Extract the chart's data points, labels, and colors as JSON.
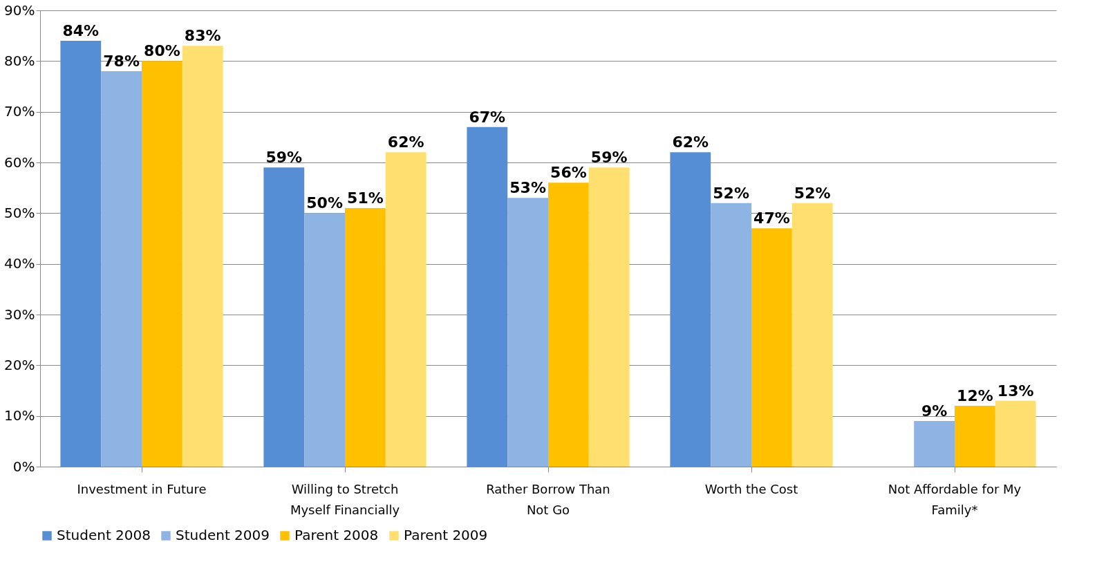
{
  "chart_data": {
    "type": "bar",
    "categories": [
      "Investment in Future",
      "Willing to Stretch Myself Financially",
      "Rather Borrow Than Not Go",
      "Worth the Cost",
      "Not Affordable for My Family*"
    ],
    "series": [
      {
        "name": "Student 2008",
        "color": "#558ed5",
        "values": [
          84,
          59,
          67,
          62,
          null
        ],
        "value_labels": [
          "84%",
          "59%",
          "67%",
          "62%",
          null
        ]
      },
      {
        "name": "Student 2009",
        "color": "#8eb4e3",
        "values": [
          78,
          50,
          53,
          52,
          9
        ],
        "value_labels": [
          "78%",
          "50%",
          "53%",
          "52%",
          "9%"
        ]
      },
      {
        "name": "Parent 2008",
        "color": "#ffc000",
        "values": [
          80,
          51,
          56,
          47,
          12
        ],
        "value_labels": [
          "80%",
          "51%",
          "56%",
          "47%",
          "12%"
        ]
      },
      {
        "name": "Parent 2009",
        "color": "#ffdf6f",
        "values": [
          83,
          62,
          59,
          52,
          13
        ],
        "value_labels": [
          "83%",
          "62%",
          "59%",
          "52%",
          "13%"
        ]
      }
    ],
    "ylim": [
      0,
      90
    ],
    "yticks": [
      {
        "value": 0,
        "label": "0%"
      },
      {
        "value": 10,
        "label": "10%"
      },
      {
        "value": 20,
        "label": "20%"
      },
      {
        "value": 30,
        "label": "30%"
      },
      {
        "value": 40,
        "label": "40%"
      },
      {
        "value": 50,
        "label": "50%"
      },
      {
        "value": 60,
        "label": "60%"
      },
      {
        "value": 70,
        "label": "70%"
      },
      {
        "value": 80,
        "label": "80%"
      },
      {
        "value": 90,
        "label": "90%"
      }
    ],
    "grid": "y",
    "legend": "bottom"
  }
}
